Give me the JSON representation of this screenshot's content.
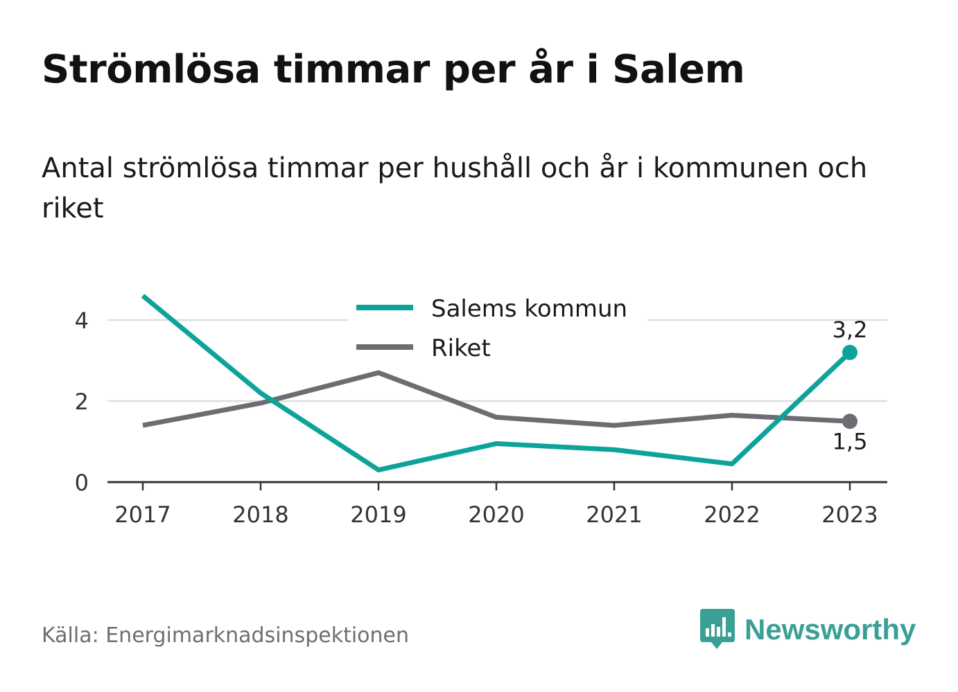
{
  "header": {
    "title": "Strömlösa timmar per år i Salem",
    "subtitle": "Antal strömlösa timmar per hushåll och år i kommunen och riket"
  },
  "footer": {
    "source": "Källa: Energimarknadsinspektionen",
    "brand": "Newsworthy",
    "brand_icon": "bar-chart-speech-bubble-icon",
    "brand_color": "#3a9f95"
  },
  "chart_data": {
    "type": "line",
    "x": [
      "2017",
      "2018",
      "2019",
      "2020",
      "2021",
      "2022",
      "2023"
    ],
    "ylim": [
      0,
      5
    ],
    "yticks": [
      0,
      2,
      4
    ],
    "grid": true,
    "legend_position": "top-center",
    "series": [
      {
        "name": "Salems kommun",
        "color": "#0ea39a",
        "values": [
          4.6,
          2.2,
          0.3,
          0.95,
          0.8,
          0.45,
          3.2
        ],
        "end_label": "3,2"
      },
      {
        "name": "Riket",
        "color": "#6d6c72",
        "values": [
          1.4,
          1.95,
          2.7,
          1.6,
          1.4,
          1.65,
          1.5
        ],
        "end_label": "1,5"
      }
    ]
  }
}
